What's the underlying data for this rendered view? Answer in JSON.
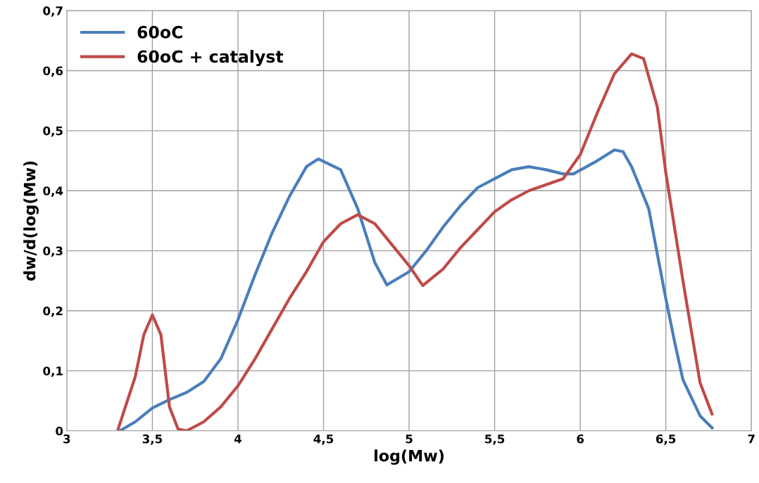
{
  "chart_data": {
    "type": "line",
    "xlabel": "log(Mw)",
    "ylabel": "dw/d(log(Mw)",
    "xlim": [
      3,
      7
    ],
    "ylim": [
      0,
      0.7
    ],
    "xticks": [
      3,
      {
        "value": 3.5,
        "label": "3,5"
      },
      4,
      {
        "value": 4.5,
        "label": "4,5"
      },
      5,
      {
        "value": 5.5,
        "label": "5,5"
      },
      6,
      {
        "value": 6.5,
        "label": "6,5"
      },
      7
    ],
    "yticks": [
      0,
      {
        "value": 0.1,
        "label": "0,1"
      },
      {
        "value": 0.2,
        "label": "0,2"
      },
      {
        "value": 0.3,
        "label": "0,3"
      },
      {
        "value": 0.4,
        "label": "0,4"
      },
      {
        "value": 0.5,
        "label": "0,5"
      },
      {
        "value": 0.6,
        "label": "0,6"
      },
      {
        "value": 0.7,
        "label": "0,7"
      }
    ],
    "grid": true,
    "legend": "top left",
    "marker": "none",
    "line_style": "solid",
    "series": [
      {
        "name": "60oC",
        "color": "#4a7ebb",
        "x": [
          3.31,
          3.4,
          3.5,
          3.6,
          3.7,
          3.8,
          3.9,
          4.0,
          4.1,
          4.2,
          4.3,
          4.4,
          4.47,
          4.6,
          4.7,
          4.8,
          4.87,
          5.0,
          5.1,
          5.2,
          5.3,
          5.4,
          5.5,
          5.6,
          5.7,
          5.8,
          5.9,
          5.96,
          6.1,
          6.2,
          6.25,
          6.3,
          6.4,
          6.5,
          6.55,
          6.6,
          6.7,
          6.77
        ],
        "values": [
          0.0,
          0.015,
          0.038,
          0.052,
          0.064,
          0.082,
          0.12,
          0.185,
          0.26,
          0.33,
          0.39,
          0.44,
          0.453,
          0.435,
          0.37,
          0.28,
          0.243,
          0.265,
          0.3,
          0.34,
          0.375,
          0.405,
          0.42,
          0.435,
          0.44,
          0.435,
          0.428,
          0.428,
          0.45,
          0.468,
          0.465,
          0.44,
          0.37,
          0.22,
          0.15,
          0.085,
          0.025,
          0.005
        ]
      },
      {
        "name": "60oC + catalyst",
        "color": "#be4b48",
        "x": [
          3.3,
          3.4,
          3.45,
          3.5,
          3.55,
          3.6,
          3.65,
          3.7,
          3.8,
          3.9,
          4.0,
          4.1,
          4.2,
          4.3,
          4.4,
          4.5,
          4.6,
          4.7,
          4.8,
          4.9,
          5.0,
          5.08,
          5.2,
          5.3,
          5.4,
          5.5,
          5.6,
          5.7,
          5.8,
          5.9,
          6.0,
          6.1,
          6.2,
          6.3,
          6.37,
          6.45,
          6.5,
          6.6,
          6.7,
          6.77
        ],
        "values": [
          0.003,
          0.09,
          0.16,
          0.193,
          0.16,
          0.04,
          0.003,
          0.0,
          0.015,
          0.04,
          0.075,
          0.12,
          0.17,
          0.22,
          0.265,
          0.315,
          0.345,
          0.36,
          0.345,
          0.31,
          0.275,
          0.242,
          0.27,
          0.305,
          0.335,
          0.365,
          0.385,
          0.4,
          0.41,
          0.42,
          0.46,
          0.53,
          0.595,
          0.628,
          0.62,
          0.54,
          0.43,
          0.25,
          0.08,
          0.028
        ]
      }
    ]
  }
}
